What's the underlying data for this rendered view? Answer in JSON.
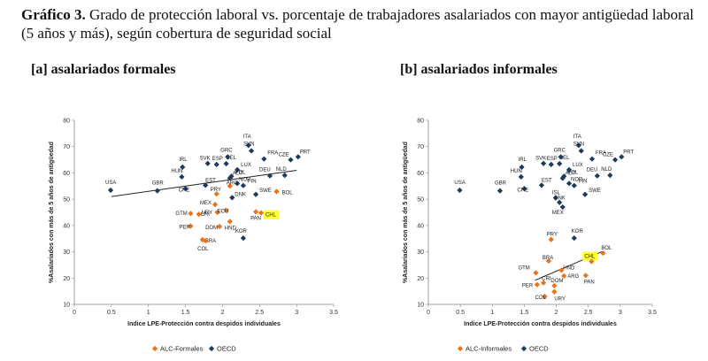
{
  "figure": {
    "number": "Gráfico 3.",
    "title": "Grado de protección laboral vs. porcentaje de trabajadores asalariados con mayor antigüedad laboral (5 años y más), según cobertura de seguridad social"
  },
  "colors": {
    "alc": "#e8741c",
    "oecd": "#1f3a5f",
    "highlight": "#ffff33",
    "trend": "#222222"
  },
  "chart_data": [
    {
      "type": "scatter",
      "panel_label": "[a] asalariados formales",
      "xlabel": "Indice LPE-Protección contra despidos individuales",
      "ylabel": "%Asalariados con más de 5 años de antigüedad",
      "xlim": [
        0,
        3.5
      ],
      "ylim": [
        10,
        80
      ],
      "xticks": [
        "0",
        "0.5",
        "1",
        "1.5",
        "2",
        "2.5",
        "3",
        "3.5"
      ],
      "yticks": [
        "10",
        "20",
        "30",
        "40",
        "50",
        "60",
        "70",
        "80"
      ],
      "legend": [
        "ALC-Formales",
        "OECD"
      ],
      "highlight_label": "CHL",
      "trendline": {
        "x0": 0.5,
        "y0": 51,
        "x1": 3.0,
        "y1": 61
      },
      "series": [
        {
          "name": "ALC-Formales",
          "points": [
            {
              "label": "GTM",
              "x": 1.57,
              "y": 44.6
            },
            {
              "label": "PER",
              "x": 1.57,
              "y": 39.8
            },
            {
              "label": "CRI",
              "x": 1.68,
              "y": 44.3
            },
            {
              "label": "BRA",
              "x": 1.73,
              "y": 34.6
            },
            {
              "label": "COL",
              "x": 1.77,
              "y": 34.2
            },
            {
              "label": "URY",
              "x": 1.93,
              "y": 45.0
            },
            {
              "label": "DOM",
              "x": 1.96,
              "y": 39.6
            },
            {
              "label": "ECU",
              "x": 2.05,
              "y": 45.8
            },
            {
              "label": "HND",
              "x": 2.1,
              "y": 41.5
            },
            {
              "label": "MEX",
              "x": 1.9,
              "y": 48.0
            },
            {
              "label": "PRY",
              "x": 1.92,
              "y": 52.0
            },
            {
              "label": "ARG",
              "x": 2.1,
              "y": 55.0
            },
            {
              "label": "PAN",
              "x": 2.45,
              "y": 45.2
            },
            {
              "label": "CHL",
              "x": 2.52,
              "y": 44.8
            },
            {
              "label": "BOL",
              "x": 2.73,
              "y": 52.9
            }
          ]
        },
        {
          "name": "OECD",
          "points": [
            {
              "label": "USA",
              "x": 0.49,
              "y": 53.4
            },
            {
              "label": "GBR",
              "x": 1.12,
              "y": 53.2
            },
            {
              "label": "HUN",
              "x": 1.45,
              "y": 58.5
            },
            {
              "label": "IRL",
              "x": 1.46,
              "y": 62.2
            },
            {
              "label": "CHE",
              "x": 1.5,
              "y": 54.0
            },
            {
              "label": "EST",
              "x": 1.77,
              "y": 55.3
            },
            {
              "label": "SVK",
              "x": 1.8,
              "y": 63.6
            },
            {
              "label": "ESP",
              "x": 1.92,
              "y": 63.2
            },
            {
              "label": "BEL",
              "x": 2.05,
              "y": 63.5
            },
            {
              "label": "GRC",
              "x": 2.07,
              "y": 66.1
            },
            {
              "label": "POL",
              "x": 2.12,
              "y": 58.7
            },
            {
              "label": "AUT",
              "x": 2.1,
              "y": 58.0
            },
            {
              "label": "LUX",
              "x": 2.2,
              "y": 61.2
            },
            {
              "label": "DNK",
              "x": 2.13,
              "y": 50.6
            },
            {
              "label": "NOR",
              "x": 2.2,
              "y": 56.0
            },
            {
              "label": "FIN",
              "x": 2.28,
              "y": 55.2
            },
            {
              "label": "ITA",
              "x": 2.35,
              "y": 70.5
            },
            {
              "label": "SVN",
              "x": 2.39,
              "y": 68.4
            },
            {
              "label": "SWE",
              "x": 2.45,
              "y": 51.8
            },
            {
              "label": "FRA",
              "x": 2.56,
              "y": 65.3
            },
            {
              "label": "DEU",
              "x": 2.64,
              "y": 58.9
            },
            {
              "label": "NLD",
              "x": 2.84,
              "y": 59.1
            },
            {
              "label": "CZE",
              "x": 2.92,
              "y": 65.0
            },
            {
              "label": "PRT",
              "x": 3.02,
              "y": 66.1
            },
            {
              "label": "KOR",
              "x": 2.28,
              "y": 35.2
            }
          ]
        }
      ]
    },
    {
      "type": "scatter",
      "panel_label": "[b] asalariados informales",
      "xlabel": "Indice LPE-Protección contra despidos individuales",
      "ylabel": "%Asalariados con más de 5 años de antigüedad",
      "xlim": [
        0,
        3.5
      ],
      "ylim": [
        10,
        80
      ],
      "xticks": [
        "0",
        "0.5",
        "1",
        "1.5",
        "2",
        "2.5",
        "3",
        "3.5"
      ],
      "yticks": [
        "10",
        "20",
        "30",
        "40",
        "50",
        "60",
        "70",
        "80"
      ],
      "legend": [
        "ALC-Informales",
        "OECD"
      ],
      "highlight_label": "CHL",
      "trendline": {
        "x0": 1.67,
        "y0": 19.2,
        "x1": 2.73,
        "y1": 30.2
      },
      "series": [
        {
          "name": "ALC-Informales",
          "points": [
            {
              "label": "GTM",
              "x": 1.68,
              "y": 22.0
            },
            {
              "label": "PER",
              "x": 1.7,
              "y": 17.5
            },
            {
              "label": "CRI",
              "x": 1.8,
              "y": 18.2
            },
            {
              "label": "COL",
              "x": 1.82,
              "y": 13.0
            },
            {
              "label": "BRA",
              "x": 1.88,
              "y": 26.5
            },
            {
              "label": "PRY",
              "x": 1.92,
              "y": 34.7
            },
            {
              "label": "URY",
              "x": 1.97,
              "y": 14.8
            },
            {
              "label": "DOM",
              "x": 1.97,
              "y": 17.1
            },
            {
              "label": "HND",
              "x": 2.08,
              "y": 23.0
            },
            {
              "label": "ARG",
              "x": 2.12,
              "y": 20.8
            },
            {
              "label": "PAN",
              "x": 2.46,
              "y": 21.0
            },
            {
              "label": "CHL",
              "x": 2.55,
              "y": 26.3
            },
            {
              "label": "BOL",
              "x": 2.73,
              "y": 29.5
            }
          ]
        },
        {
          "name": "OECD",
          "points": [
            {
              "label": "USA",
              "x": 0.49,
              "y": 53.4
            },
            {
              "label": "GBR",
              "x": 1.12,
              "y": 53.2
            },
            {
              "label": "HUN",
              "x": 1.45,
              "y": 58.5
            },
            {
              "label": "IRL",
              "x": 1.46,
              "y": 62.2
            },
            {
              "label": "CHE",
              "x": 1.5,
              "y": 54.0
            },
            {
              "label": "EST",
              "x": 1.77,
              "y": 55.3
            },
            {
              "label": "SVK",
              "x": 1.8,
              "y": 63.6
            },
            {
              "label": "ESP",
              "x": 1.92,
              "y": 63.2
            },
            {
              "label": "BEL",
              "x": 2.05,
              "y": 63.5
            },
            {
              "label": "GRC",
              "x": 2.07,
              "y": 66.1
            },
            {
              "label": "POL",
              "x": 2.12,
              "y": 58.7
            },
            {
              "label": "AUT",
              "x": 2.1,
              "y": 58.0
            },
            {
              "label": "LUX",
              "x": 2.2,
              "y": 61.2
            },
            {
              "label": "ISL",
              "x": 1.99,
              "y": 50.5
            },
            {
              "label": "DNK",
              "x": 2.05,
              "y": 48.8
            },
            {
              "label": "NOR",
              "x": 2.2,
              "y": 56.0
            },
            {
              "label": "FIN",
              "x": 2.28,
              "y": 55.2
            },
            {
              "label": "ITA",
              "x": 2.35,
              "y": 70.5
            },
            {
              "label": "SVN",
              "x": 2.39,
              "y": 68.4
            },
            {
              "label": "SWE",
              "x": 2.45,
              "y": 51.8
            },
            {
              "label": "FRA",
              "x": 2.56,
              "y": 65.3
            },
            {
              "label": "DEU",
              "x": 2.64,
              "y": 58.9
            },
            {
              "label": "NLD",
              "x": 2.84,
              "y": 59.1
            },
            {
              "label": "CZE",
              "x": 2.92,
              "y": 65.0
            },
            {
              "label": "PRT",
              "x": 3.02,
              "y": 66.1
            },
            {
              "label": "MEX",
              "x": 2.1,
              "y": 47.0
            },
            {
              "label": "KOR",
              "x": 2.28,
              "y": 35.2
            }
          ]
        }
      ]
    }
  ]
}
